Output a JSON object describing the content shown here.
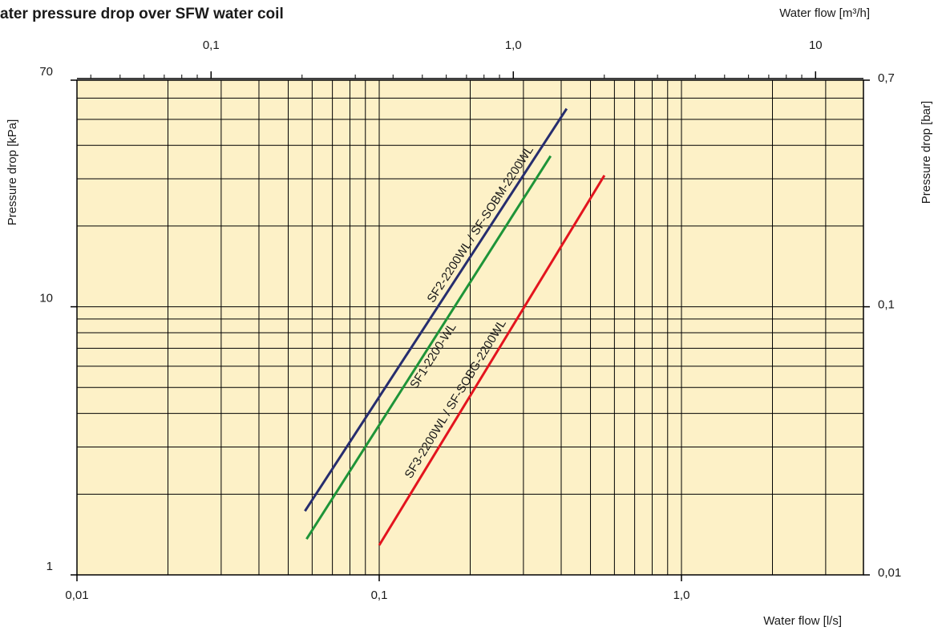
{
  "chart_data": {
    "type": "line",
    "title": "ater pressure drop over SFW water coil",
    "xlabel": "Water flow [l/s]",
    "ylabel": "Pressure drop [kPa]",
    "x2label": "Water flow [m³/h]",
    "y2label": "Pressure drop [bar]",
    "log_x": true,
    "log_y": true,
    "grid": true,
    "background": "#fdf1c7",
    "xlim": [
      0.01,
      4
    ],
    "xticks": [
      {
        "value": 0.01,
        "label": "0,01"
      },
      {
        "value": 0.1,
        "label": "0,1"
      },
      {
        "value": 1,
        "label": "1,0"
      }
    ],
    "xgrid_minor": [
      0.02,
      0.03,
      0.04,
      0.05,
      0.06,
      0.07,
      0.08,
      0.09,
      0.2,
      0.3,
      0.4,
      0.5,
      0.6,
      0.7,
      0.8,
      0.9,
      2,
      3
    ],
    "ylim": [
      1,
      70
    ],
    "yticks": [
      1,
      10,
      70
    ],
    "ygrid_minor": [
      2,
      3,
      4,
      5,
      6,
      7,
      8,
      9,
      20,
      30,
      40,
      50,
      60
    ],
    "x2lim": [
      0.036,
      14.4
    ],
    "x2ticks": [
      {
        "value": 0.1,
        "label": "0,1"
      },
      {
        "value": 1,
        "label": "1,0"
      },
      10
    ],
    "x2ticks_minor": [
      0.04,
      0.05,
      0.06,
      0.07,
      0.08,
      0.09,
      0.2,
      0.3,
      0.4,
      0.5,
      0.6,
      0.7,
      0.8,
      0.9,
      2,
      3,
      4,
      5,
      6,
      7,
      8,
      9
    ],
    "y2lim": [
      0.01,
      0.7
    ],
    "y2ticks": [
      {
        "value": 0.01,
        "label": "0,01"
      },
      {
        "value": 0.1,
        "label": "0,1"
      },
      {
        "value": 0.7,
        "label": "0,7"
      }
    ],
    "series": [
      {
        "name": "SF2-2200WL / SF-SOBM-2200WL",
        "color": "#262d6e",
        "x": [
          0.0568,
          0.417
        ],
        "values": [
          1.73,
          54.8
        ]
      },
      {
        "name": "SF1-2200-WL",
        "color": "#1e9438",
        "x": [
          0.0575,
          0.369
        ],
        "values": [
          1.36,
          36.5
        ]
      },
      {
        "name": "SF3-2200WL / SF-SOBG-2200WL",
        "color": "#e3141e",
        "x": [
          0.1,
          0.556
        ],
        "values": [
          1.29,
          30.9
        ]
      }
    ]
  }
}
